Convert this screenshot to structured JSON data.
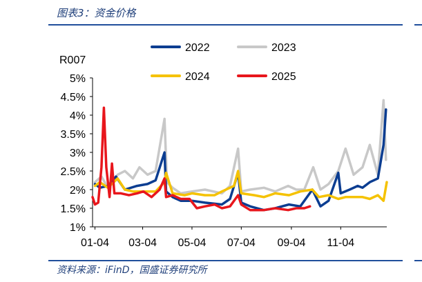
{
  "header": {
    "title": "图表3：资金价格"
  },
  "footer": {
    "source": "资料来源：iFinD，国盛证券研究所"
  },
  "chart_data": {
    "type": "line",
    "ylabel": "R007",
    "ylim": [
      1,
      5
    ],
    "yticks": [
      "1%",
      "1.5%",
      "2%",
      "2.5%",
      "3%",
      "3.5%",
      "4%",
      "4.5%",
      "5%"
    ],
    "x_range": [
      "01-01",
      "12-31"
    ],
    "xticks": [
      "01-04",
      "03-04",
      "05-04",
      "07-04",
      "09-04",
      "11-04"
    ],
    "legend_position": "top",
    "grid": false,
    "series": [
      {
        "name": "2022",
        "color": "#0b3d91",
        "x": [
          "01-04",
          "01-10",
          "01-20",
          "01-30",
          "02-10",
          "02-25",
          "03-10",
          "03-20",
          "03-31",
          "04-02",
          "04-10",
          "04-20",
          "05-04",
          "05-20",
          "06-10",
          "06-20",
          "06-30",
          "07-04",
          "07-15",
          "08-01",
          "08-15",
          "09-01",
          "09-15",
          "09-30",
          "10-10",
          "10-20",
          "11-01",
          "11-04",
          "11-15",
          "11-25",
          "12-01",
          "12-10",
          "12-20",
          "12-27",
          "12-30"
        ],
        "values": [
          2.15,
          2.05,
          2.1,
          2.35,
          2.0,
          2.1,
          2.15,
          2.25,
          3.0,
          1.95,
          1.8,
          1.7,
          1.7,
          1.65,
          1.6,
          1.75,
          2.45,
          1.65,
          1.55,
          1.45,
          1.5,
          1.6,
          1.55,
          2.0,
          1.55,
          1.7,
          2.45,
          1.9,
          2.0,
          2.1,
          2.05,
          2.2,
          2.3,
          3.2,
          4.15
        ]
      },
      {
        "name": "2023",
        "color": "#c8c8c8",
        "x": [
          "01-04",
          "01-12",
          "01-20",
          "02-01",
          "02-10",
          "02-20",
          "02-28",
          "03-10",
          "03-20",
          "03-31",
          "04-03",
          "04-10",
          "04-20",
          "05-04",
          "05-20",
          "06-10",
          "06-20",
          "06-30",
          "07-04",
          "07-15",
          "08-01",
          "08-15",
          "08-31",
          "09-10",
          "09-20",
          "10-01",
          "10-10",
          "10-20",
          "11-01",
          "11-10",
          "11-20",
          "12-01",
          "12-10",
          "12-20",
          "12-27",
          "12-30"
        ],
        "values": [
          2.2,
          2.35,
          2.05,
          2.4,
          2.5,
          2.3,
          2.6,
          2.4,
          2.5,
          3.9,
          2.2,
          2.05,
          1.9,
          1.95,
          2.0,
          1.9,
          2.1,
          3.1,
          1.95,
          2.0,
          2.05,
          1.95,
          2.1,
          2.0,
          2.0,
          2.6,
          2.0,
          2.15,
          2.5,
          3.1,
          2.4,
          2.6,
          3.2,
          2.4,
          4.4,
          2.8
        ]
      },
      {
        "name": "2024",
        "color": "#f5c200",
        "x": [
          "01-04",
          "01-10",
          "01-20",
          "02-01",
          "02-10",
          "02-20",
          "03-04",
          "03-20",
          "03-31",
          "04-02",
          "04-10",
          "04-25",
          "05-04",
          "05-20",
          "06-01",
          "06-10",
          "06-25",
          "06-30",
          "07-04",
          "07-20",
          "08-01",
          "08-15",
          "09-01",
          "09-15",
          "09-30",
          "10-08",
          "10-20",
          "11-01",
          "11-10",
          "11-20",
          "12-01",
          "12-10",
          "12-20",
          "12-27",
          "12-31"
        ],
        "values": [
          2.1,
          2.2,
          2.05,
          2.3,
          2.0,
          1.95,
          1.95,
          1.95,
          2.2,
          2.45,
          1.9,
          1.85,
          1.9,
          1.85,
          1.85,
          1.95,
          2.1,
          2.5,
          1.9,
          1.85,
          1.8,
          1.9,
          1.85,
          1.95,
          2.0,
          1.8,
          1.85,
          1.75,
          1.8,
          1.8,
          1.8,
          1.75,
          1.85,
          1.7,
          2.2
        ]
      },
      {
        "name": "2025",
        "color": "#e8161c",
        "x": [
          "01-01",
          "01-04",
          "01-08",
          "01-12",
          "01-15",
          "01-18",
          "01-22",
          "01-25",
          "01-28",
          "02-05",
          "02-15",
          "02-25",
          "03-05",
          "03-15",
          "03-25",
          "03-31",
          "04-02",
          "04-10",
          "04-20",
          "05-01",
          "05-10",
          "05-20",
          "06-01",
          "06-10",
          "06-20",
          "06-30",
          "07-04",
          "07-15",
          "08-01",
          "08-15",
          "08-31",
          "09-10",
          "09-20",
          "09-27"
        ],
        "values": [
          1.8,
          1.6,
          1.65,
          2.6,
          4.2,
          2.6,
          1.8,
          2.7,
          1.9,
          1.9,
          1.85,
          1.9,
          1.95,
          1.8,
          2.0,
          2.3,
          1.8,
          1.85,
          1.75,
          1.75,
          1.5,
          1.55,
          1.6,
          1.5,
          1.55,
          1.85,
          1.6,
          1.45,
          1.45,
          1.5,
          1.45,
          1.5,
          1.5,
          1.55
        ]
      }
    ]
  }
}
